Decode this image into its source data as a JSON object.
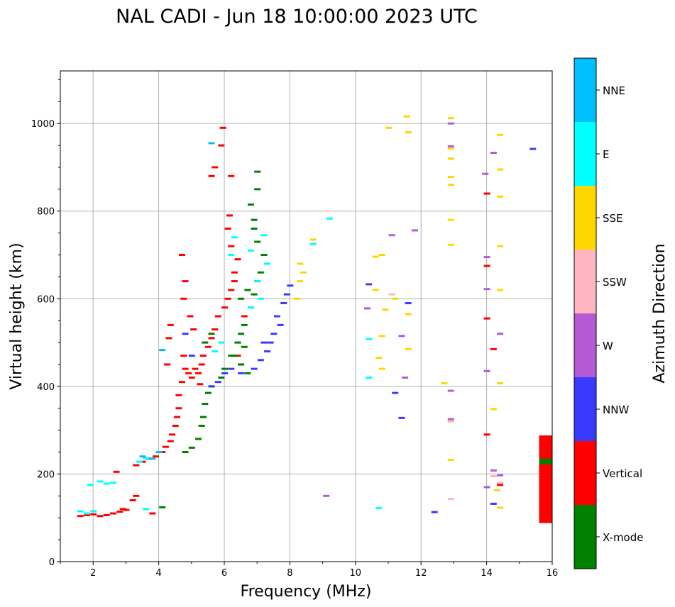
{
  "chart_data": {
    "type": "scatter",
    "title": "NAL CADI - Jun 18 10:00:00 2023 UTC",
    "xlabel": "Frequency (MHz)",
    "ylabel": "Virtual height (km)",
    "xlim": [
      1,
      16
    ],
    "ylim": [
      0,
      1120
    ],
    "xticks": [
      "2",
      "4",
      "6",
      "8",
      "10",
      "12",
      "14",
      "16"
    ],
    "yticks": [
      "0",
      "200",
      "400",
      "600",
      "800",
      "1000"
    ],
    "grid": true,
    "colorbar": {
      "label": "Azimuth Direction",
      "categories": [
        {
          "name": "X-mode",
          "color": "#008000"
        },
        {
          "name": "Vertical",
          "color": "#ff0000"
        },
        {
          "name": "NNW",
          "color": "#3a3aff"
        },
        {
          "name": "W",
          "color": "#b45ad4"
        },
        {
          "name": "SSW",
          "color": "#ffb6c1"
        },
        {
          "name": "SSE",
          "color": "#ffd700"
        },
        {
          "name": "E",
          "color": "#00ffff"
        },
        {
          "name": "NNE",
          "color": "#00bfff"
        }
      ]
    },
    "series": [
      {
        "name": "Vertical",
        "points": [
          [
            1.6,
            104
          ],
          [
            1.8,
            106
          ],
          [
            2.0,
            108
          ],
          [
            2.2,
            104
          ],
          [
            2.4,
            106
          ],
          [
            2.6,
            110
          ],
          [
            2.8,
            114
          ],
          [
            3.0,
            118
          ],
          [
            3.2,
            140
          ],
          [
            3.3,
            150
          ],
          [
            3.3,
            220
          ],
          [
            3.5,
            228
          ],
          [
            3.7,
            235
          ],
          [
            3.9,
            240
          ],
          [
            4.1,
            250
          ],
          [
            4.2,
            262
          ],
          [
            4.35,
            275
          ],
          [
            4.4,
            290
          ],
          [
            4.5,
            310
          ],
          [
            4.55,
            330
          ],
          [
            4.6,
            350
          ],
          [
            4.6,
            380
          ],
          [
            4.7,
            410
          ],
          [
            4.8,
            440
          ],
          [
            4.75,
            470
          ],
          [
            4.9,
            430
          ],
          [
            5.0,
            420
          ],
          [
            5.1,
            440
          ],
          [
            5.2,
            430
          ],
          [
            5.3,
            450
          ],
          [
            5.35,
            470
          ],
          [
            5.5,
            490
          ],
          [
            5.6,
            510
          ],
          [
            5.7,
            530
          ],
          [
            5.8,
            560
          ],
          [
            6.0,
            580
          ],
          [
            6.1,
            600
          ],
          [
            6.2,
            620
          ],
          [
            6.3,
            640
          ],
          [
            6.3,
            660
          ],
          [
            6.4,
            690
          ],
          [
            6.2,
            720
          ],
          [
            6.1,
            760
          ],
          [
            6.15,
            790
          ],
          [
            6.2,
            880
          ],
          [
            5.6,
            880
          ],
          [
            5.7,
            900
          ],
          [
            5.9,
            950
          ],
          [
            5.95,
            990
          ],
          [
            4.7,
            700
          ],
          [
            4.8,
            640
          ],
          [
            4.75,
            600
          ],
          [
            4.95,
            560
          ],
          [
            5.05,
            530
          ],
          [
            4.3,
            510
          ],
          [
            4.35,
            540
          ],
          [
            3.8,
            110
          ],
          [
            2.9,
            120
          ],
          [
            14.0,
            290
          ],
          [
            14.0,
            675
          ],
          [
            14.0,
            840
          ],
          [
            14.2,
            485
          ],
          [
            14.0,
            555
          ],
          [
            14.4,
            175
          ],
          [
            6.5,
            450
          ],
          [
            6.4,
            470
          ],
          [
            5.25,
            405
          ],
          [
            4.25,
            450
          ],
          [
            2.7,
            205
          ],
          [
            6.6,
            560
          ]
        ]
      },
      {
        "name": "X-mode",
        "points": [
          [
            4.8,
            250
          ],
          [
            5.0,
            260
          ],
          [
            5.2,
            280
          ],
          [
            5.3,
            310
          ],
          [
            5.35,
            330
          ],
          [
            5.4,
            360
          ],
          [
            5.5,
            385
          ],
          [
            5.6,
            400
          ],
          [
            5.9,
            420
          ],
          [
            6.0,
            440
          ],
          [
            6.2,
            470
          ],
          [
            6.4,
            500
          ],
          [
            6.5,
            520
          ],
          [
            6.6,
            540
          ],
          [
            6.8,
            580
          ],
          [
            6.9,
            610
          ],
          [
            7.0,
            640
          ],
          [
            7.1,
            660
          ],
          [
            7.2,
            700
          ],
          [
            7.0,
            730
          ],
          [
            6.9,
            760
          ],
          [
            6.9,
            780
          ],
          [
            7.0,
            850
          ],
          [
            7.0,
            890
          ],
          [
            6.8,
            815
          ],
          [
            6.6,
            490
          ],
          [
            6.5,
            450
          ],
          [
            6.7,
            430
          ],
          [
            5.4,
            500
          ],
          [
            5.6,
            520
          ],
          [
            4.1,
            124
          ],
          [
            15.8,
            228
          ],
          [
            6.3,
            470
          ],
          [
            6.5,
            600
          ],
          [
            6.7,
            620
          ]
        ]
      },
      {
        "name": "NNW",
        "points": [
          [
            5.6,
            400
          ],
          [
            5.8,
            410
          ],
          [
            6.0,
            430
          ],
          [
            6.2,
            440
          ],
          [
            6.5,
            430
          ],
          [
            6.9,
            440
          ],
          [
            7.1,
            460
          ],
          [
            7.3,
            480
          ],
          [
            7.5,
            520
          ],
          [
            7.6,
            560
          ],
          [
            7.8,
            590
          ],
          [
            7.9,
            610
          ],
          [
            8.0,
            630
          ],
          [
            7.7,
            540
          ],
          [
            7.4,
            500
          ],
          [
            10.4,
            633
          ],
          [
            11.6,
            590
          ],
          [
            11.2,
            385
          ],
          [
            11.4,
            328
          ],
          [
            12.4,
            113
          ],
          [
            14.2,
            132
          ],
          [
            15.4,
            942
          ],
          [
            4.8,
            520
          ],
          [
            5.0,
            470
          ],
          [
            7.2,
            500
          ]
        ]
      },
      {
        "name": "W",
        "points": [
          [
            12.9,
            390
          ],
          [
            12.9,
            325
          ],
          [
            12.9,
            948
          ],
          [
            13.95,
            885
          ],
          [
            14.2,
            933
          ],
          [
            14.0,
            695
          ],
          [
            14.4,
            520
          ],
          [
            14.0,
            435
          ],
          [
            14.2,
            208
          ],
          [
            14.4,
            197
          ],
          [
            11.4,
            515
          ],
          [
            11.5,
            420
          ],
          [
            11.8,
            756
          ],
          [
            14.0,
            170
          ],
          [
            9.1,
            150
          ],
          [
            10.35,
            578
          ],
          [
            11.1,
            745
          ],
          [
            14.0,
            622
          ],
          [
            12.9,
            1000
          ]
        ]
      },
      {
        "name": "SSW",
        "points": [
          [
            12.9,
            143
          ],
          [
            11.1,
            610
          ],
          [
            14.4,
            180
          ],
          [
            12.9,
            320
          ],
          [
            14.2,
            195
          ]
        ]
      },
      {
        "name": "SSE",
        "points": [
          [
            8.2,
            600
          ],
          [
            8.3,
            640
          ],
          [
            8.4,
            660
          ],
          [
            8.3,
            680
          ],
          [
            8.7,
            735
          ],
          [
            10.6,
            696
          ],
          [
            10.8,
            700
          ],
          [
            10.6,
            620
          ],
          [
            11.6,
            485
          ],
          [
            11.6,
            565
          ],
          [
            12.9,
            232
          ],
          [
            12.9,
            878
          ],
          [
            12.9,
            920
          ],
          [
            12.9,
            860
          ],
          [
            12.9,
            780
          ],
          [
            12.9,
            723
          ],
          [
            12.9,
            1012
          ],
          [
            12.9,
            943
          ],
          [
            14.4,
            974
          ],
          [
            14.4,
            895
          ],
          [
            14.4,
            833
          ],
          [
            14.4,
            720
          ],
          [
            14.4,
            620
          ],
          [
            14.4,
            407
          ],
          [
            14.2,
            348
          ],
          [
            14.4,
            123
          ],
          [
            12.7,
            407
          ],
          [
            11.55,
            1016
          ],
          [
            11.0,
            990
          ],
          [
            10.7,
            465
          ],
          [
            10.9,
            575
          ],
          [
            11.6,
            980
          ],
          [
            14.3,
            163
          ],
          [
            10.8,
            440
          ],
          [
            10.8,
            515
          ],
          [
            11.2,
            600
          ]
        ]
      },
      {
        "name": "E",
        "points": [
          [
            1.6,
            115
          ],
          [
            1.8,
            110
          ],
          [
            2.0,
            115
          ],
          [
            2.4,
            178
          ],
          [
            2.6,
            180
          ],
          [
            3.4,
            228
          ],
          [
            3.6,
            236
          ],
          [
            3.6,
            120
          ],
          [
            6.2,
            700
          ],
          [
            6.8,
            580
          ],
          [
            7.1,
            600
          ],
          [
            7.3,
            680
          ],
          [
            8.7,
            725
          ],
          [
            10.4,
            508
          ],
          [
            10.4,
            420
          ],
          [
            10.7,
            122
          ],
          [
            5.7,
            480
          ],
          [
            5.9,
            500
          ],
          [
            6.3,
            740
          ],
          [
            7.0,
            640
          ],
          [
            6.8,
            710
          ],
          [
            7.2,
            745
          ],
          [
            9.2,
            783
          ],
          [
            1.9,
            175
          ],
          [
            2.2,
            183
          ]
        ]
      },
      {
        "name": "NNE",
        "points": [
          [
            4.1,
            483
          ],
          [
            4.0,
            250
          ],
          [
            3.8,
            235
          ],
          [
            5.6,
            955
          ],
          [
            3.5,
            240
          ]
        ]
      }
    ],
    "rectangles": [
      {
        "series": "Vertical",
        "x0": 15.6,
        "x1": 16.0,
        "y0": 88,
        "y1": 288
      },
      {
        "series": "X-mode",
        "x0": 15.6,
        "x1": 16.0,
        "y0": 222,
        "y1": 235
      }
    ]
  }
}
